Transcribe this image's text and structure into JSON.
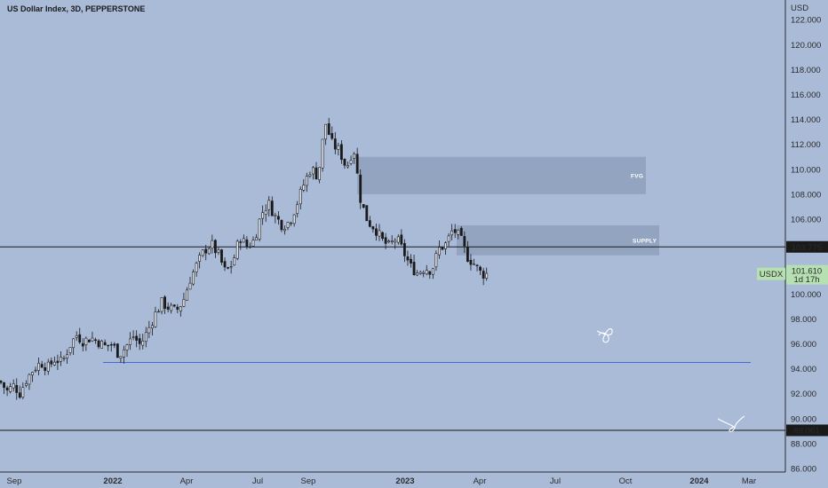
{
  "title": "US Dollar Index, 3D, PEPPERSTONE",
  "chart_data": {
    "type": "candlestick",
    "y_unit": "USD",
    "ylim": [
      85.5,
      124
    ],
    "y_ticks": [
      86.0,
      88.0,
      90.0,
      92.0,
      94.0,
      96.0,
      98.0,
      100.0,
      102.0,
      104.0,
      106.0,
      108.0,
      110.0,
      112.0,
      114.0,
      116.0,
      118.0,
      120.0,
      122.0
    ],
    "x_ticks": [
      "Sep",
      "2022",
      "Apr",
      "Jul",
      "Sep",
      "2023",
      "Apr",
      "Jul",
      "Oct",
      "2024",
      "Mar"
    ],
    "x_tick_bold": [
      false,
      true,
      false,
      false,
      false,
      true,
      false,
      false,
      false,
      true,
      false
    ],
    "symbol": "USDX",
    "last_price": "101.610",
    "last_price_value": 101.61,
    "countdown": "1d 17h",
    "horizontal_lines": [
      {
        "value": 103.775,
        "label": "103.775",
        "color": "#1a1a1a"
      },
      {
        "value": 89.061,
        "label": "89.061",
        "color": "#1a1a1a"
      },
      {
        "value": 94.5,
        "label": "",
        "color": "#3a5bd9"
      }
    ],
    "zones": [
      {
        "label": "FVG",
        "top": 111.0,
        "bottom": 108.0
      },
      {
        "label": "SUPPLY",
        "top": 105.5,
        "bottom": 103.1
      }
    ],
    "price_path": [
      [
        0,
        93.0
      ],
      [
        8,
        92.2
      ],
      [
        16,
        92.7
      ],
      [
        22,
        92.0
      ],
      [
        30,
        93.2
      ],
      [
        38,
        94.0
      ],
      [
        46,
        94.5
      ],
      [
        54,
        94.1
      ],
      [
        62,
        94.8
      ],
      [
        70,
        94.5
      ],
      [
        78,
        95.8
      ],
      [
        86,
        96.7
      ],
      [
        94,
        96.2
      ],
      [
        102,
        96.5
      ],
      [
        110,
        96.2
      ],
      [
        118,
        95.8
      ],
      [
        126,
        96.0
      ],
      [
        134,
        95.1
      ],
      [
        142,
        95.8
      ],
      [
        150,
        96.6
      ],
      [
        158,
        95.9
      ],
      [
        166,
        97.0
      ],
      [
        174,
        98.3
      ],
      [
        182,
        99.3
      ],
      [
        190,
        98.9
      ],
      [
        198,
        98.6
      ],
      [
        206,
        99.4
      ],
      [
        214,
        101.2
      ],
      [
        222,
        102.4
      ],
      [
        230,
        103.5
      ],
      [
        238,
        104.0
      ],
      [
        246,
        103.1
      ],
      [
        254,
        101.7
      ],
      [
        262,
        102.5
      ],
      [
        270,
        104.6
      ],
      [
        278,
        103.8
      ],
      [
        286,
        104.3
      ],
      [
        294,
        106.4
      ],
      [
        302,
        107.3
      ],
      [
        310,
        106.2
      ],
      [
        318,
        105.5
      ],
      [
        326,
        105.8
      ],
      [
        334,
        107.2
      ],
      [
        342,
        108.8
      ],
      [
        350,
        110.1
      ],
      [
        358,
        109.4
      ],
      [
        366,
        113.8
      ],
      [
        374,
        112.0
      ],
      [
        382,
        111.5
      ],
      [
        390,
        110.1
      ],
      [
        398,
        111.8
      ],
      [
        406,
        107.5
      ],
      [
        414,
        105.8
      ],
      [
        422,
        105.3
      ],
      [
        430,
        104.3
      ],
      [
        438,
        103.8
      ],
      [
        446,
        104.5
      ],
      [
        454,
        103.4
      ],
      [
        462,
        102.2
      ],
      [
        470,
        101.7
      ],
      [
        478,
        102.1
      ],
      [
        486,
        101.9
      ],
      [
        494,
        103.6
      ],
      [
        502,
        104.0
      ],
      [
        510,
        105.2
      ],
      [
        518,
        104.5
      ],
      [
        526,
        103.0
      ],
      [
        534,
        102.4
      ],
      [
        542,
        101.6
      ],
      [
        550,
        101.61
      ]
    ]
  }
}
